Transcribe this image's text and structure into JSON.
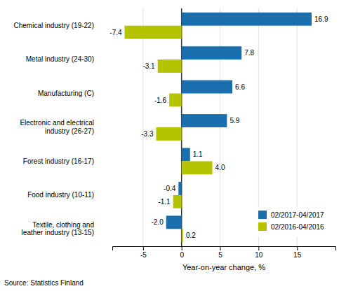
{
  "chart_data": {
    "type": "bar",
    "orientation": "horizontal",
    "categories": [
      "Chemical industry (19-22)",
      "Metal industry (24-30)",
      "Manufacturing (C)",
      "Electronic and electrical\nindustry (26-27)",
      "Forest industry (16-17)",
      "Food industry (10-11)",
      "Textile, clothing and\nleather industry (13-15)"
    ],
    "series": [
      {
        "name": "02/2017-04/2017",
        "color": "#1a6faf",
        "values": [
          16.9,
          7.8,
          6.6,
          5.9,
          1.1,
          -0.4,
          -2.0
        ],
        "value_labels": [
          "16.9",
          "7.8",
          "6.6",
          "5.9",
          "1.1",
          "-0.4",
          "-2.0"
        ]
      },
      {
        "name": "02/2016-04/2016",
        "color": "#b5c400",
        "values": [
          -7.4,
          -3.1,
          -1.6,
          -3.3,
          4.0,
          -1.1,
          0.2
        ],
        "value_labels": [
          "-7.4",
          "-3.1",
          "-1.6",
          "-3.3",
          "4.0",
          "-1.1",
          "0.2"
        ]
      }
    ],
    "xlabel": "Year-on-year change, %",
    "annotations": [
      "Source: Statistics Finland"
    ],
    "xlim": [
      -9,
      20
    ],
    "xticks": [
      -5,
      0,
      5,
      10,
      15
    ],
    "grid": true,
    "legend": "lower right",
    "data_labels": true
  }
}
